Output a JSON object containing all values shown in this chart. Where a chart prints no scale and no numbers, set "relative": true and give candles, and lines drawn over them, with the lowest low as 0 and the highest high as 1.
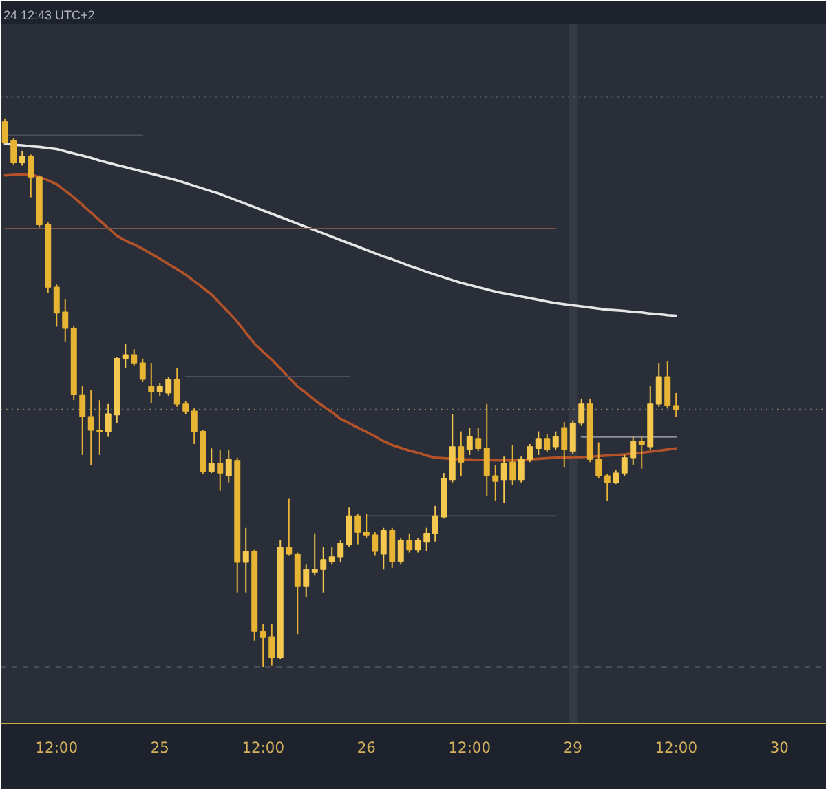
{
  "chart_data": {
    "type": "candlestick",
    "relative": true,
    "annotations": [
      "24 12:43 UTC+2"
    ],
    "categories": [
      null,
      null,
      null,
      null,
      null,
      null,
      "12:00",
      null,
      null,
      null,
      null,
      null,
      null,
      null,
      null,
      null,
      null,
      null,
      "25",
      null,
      null,
      null,
      null,
      null,
      null,
      null,
      null,
      null,
      null,
      null,
      "12:00",
      null,
      null,
      null,
      null,
      null,
      null,
      null,
      null,
      null,
      null,
      null,
      "26",
      null,
      null,
      null,
      null,
      null,
      null,
      null,
      null,
      null,
      null,
      null,
      "12:00",
      null,
      null,
      null,
      null,
      null,
      null,
      null,
      null,
      null,
      null,
      null,
      "29",
      null,
      null,
      null,
      null,
      null,
      null,
      null,
      null,
      null,
      null,
      null,
      "12:00",
      null,
      null,
      null,
      null,
      null,
      null,
      null,
      null,
      null,
      null,
      null,
      "30",
      null,
      null,
      null,
      null,
      null
    ],
    "ohlc": [
      [
        0.995,
        1.0,
        0.955,
        0.957
      ],
      [
        0.96,
        0.965,
        0.917,
        0.92
      ],
      [
        0.92,
        0.942,
        0.915,
        0.932
      ],
      [
        0.932,
        0.935,
        0.857,
        0.894
      ],
      [
        0.894,
        0.897,
        0.802,
        0.807
      ],
      [
        0.807,
        0.812,
        0.683,
        0.693
      ],
      [
        0.693,
        0.698,
        0.621,
        0.646
      ],
      [
        0.648,
        0.671,
        0.593,
        0.618
      ],
      [
        0.618,
        0.623,
        0.487,
        0.497
      ],
      [
        0.497,
        0.513,
        0.387,
        0.457
      ],
      [
        0.457,
        0.505,
        0.369,
        0.432
      ],
      [
        0.432,
        0.487,
        0.387,
        0.43
      ],
      [
        0.43,
        0.48,
        0.42,
        0.462
      ],
      [
        0.46,
        0.565,
        0.445,
        0.563
      ],
      [
        0.563,
        0.59,
        0.545,
        0.57
      ],
      [
        0.57,
        0.58,
        0.55,
        0.555
      ],
      [
        0.555,
        0.563,
        0.52,
        0.525
      ],
      [
        0.513,
        0.555,
        0.482,
        0.503
      ],
      [
        0.503,
        0.518,
        0.495,
        0.513
      ],
      [
        0.5,
        0.53,
        0.495,
        0.525
      ],
      [
        0.525,
        0.545,
        0.475,
        0.48
      ],
      [
        0.48,
        0.485,
        0.462,
        0.467
      ],
      [
        0.467,
        0.472,
        0.407,
        0.43
      ],
      [
        0.43,
        0.432,
        0.352,
        0.357
      ],
      [
        0.357,
        0.399,
        0.354,
        0.372
      ],
      [
        0.372,
        0.397,
        0.322,
        0.354
      ],
      [
        0.349,
        0.397,
        0.337,
        0.379
      ],
      [
        0.377,
        0.382,
        0.136,
        0.191
      ],
      [
        0.191,
        0.254,
        0.136,
        0.211
      ],
      [
        0.211,
        0.214,
        0.048,
        0.065
      ],
      [
        0.065,
        0.078,
        0,
        0.055
      ],
      [
        0.055,
        0.078,
        0.003,
        0.018
      ],
      [
        0.018,
        0.231,
        0.015,
        0.219
      ],
      [
        0.219,
        0.307,
        0.204,
        0.206
      ],
      [
        0.206,
        0.209,
        0.06,
        0.148
      ],
      [
        0.148,
        0.188,
        0.128,
        0.178
      ],
      [
        0.173,
        0.244,
        0.168,
        0.178
      ],
      [
        0.178,
        0.219,
        0.136,
        0.196
      ],
      [
        0.193,
        0.219,
        0.188,
        0.201
      ],
      [
        0.201,
        0.231,
        0.191,
        0.226
      ],
      [
        0.224,
        0.291,
        0.219,
        0.276
      ],
      [
        0.276,
        0.279,
        0.224,
        0.246
      ],
      [
        0.246,
        0.279,
        0.236,
        0.241
      ],
      [
        0.241,
        0.246,
        0.204,
        0.211
      ],
      [
        0.206,
        0.254,
        0.178,
        0.249
      ],
      [
        0.249,
        0.254,
        0.181,
        0.193
      ],
      [
        0.193,
        0.236,
        0.188,
        0.231
      ],
      [
        0.231,
        0.244,
        0.209,
        0.214
      ],
      [
        0.214,
        0.236,
        0.209,
        0.231
      ],
      [
        0.229,
        0.254,
        0.211,
        0.244
      ],
      [
        0.244,
        0.294,
        0.229,
        0.276
      ],
      [
        0.274,
        0.354,
        0.271,
        0.344
      ],
      [
        0.342,
        0.462,
        0.337,
        0.402
      ],
      [
        0.402,
        0.43,
        0.349,
        0.374
      ],
      [
        0.397,
        0.437,
        0.387,
        0.42
      ],
      [
        0.417,
        0.437,
        0.394,
        0.399
      ],
      [
        0.399,
        0.48,
        0.312,
        0.349
      ],
      [
        0.349,
        0.369,
        0.304,
        0.339
      ],
      [
        0.342,
        0.384,
        0.299,
        0.372
      ],
      [
        0.374,
        0.405,
        0.332,
        0.342
      ],
      [
        0.342,
        0.384,
        0.337,
        0.379
      ],
      [
        0.379,
        0.407,
        0.374,
        0.402
      ],
      [
        0.399,
        0.43,
        0.387,
        0.417
      ],
      [
        0.417,
        0.425,
        0.392,
        0.397
      ],
      [
        0.402,
        0.43,
        0.397,
        0.42
      ],
      [
        0.437,
        0.447,
        0.364,
        0.397
      ],
      [
        0.394,
        0.45,
        0.389,
        0.445
      ],
      [
        0.445,
        0.49,
        0.44,
        0.48
      ],
      [
        0.48,
        0.49,
        0.374,
        0.379
      ],
      [
        0.379,
        0.41,
        0.344,
        0.349
      ],
      [
        0.349,
        0.352,
        0.304,
        0.337
      ],
      [
        0.337,
        0.359,
        0.334,
        0.354
      ],
      [
        0.354,
        0.387,
        0.349,
        0.382
      ],
      [
        0.382,
        0.42,
        0.369,
        0.412
      ],
      [
        0.412,
        0.42,
        0.362,
        0.405
      ],
      [
        0.402,
        0.513,
        0.397,
        0.48
      ],
      [
        0.48,
        0.555,
        0.475,
        0.53
      ],
      [
        0.53,
        0.558,
        0.472,
        0.477
      ],
      [
        0.477,
        0.5,
        0.457,
        0.47
      ],
      null,
      null,
      null,
      null,
      null,
      null,
      null,
      null,
      null,
      null,
      null,
      null,
      null,
      null,
      null,
      null,
      null
    ],
    "colors": [
      "#e8b434",
      "#e8b434",
      "#f5c94f",
      "#e8b434",
      "#e8b434",
      "#e8b434",
      "#e8b434",
      "#e8b434",
      "#e8b434",
      "#e8b434",
      "#e8b434",
      "#e8b434",
      "#f5c94f",
      "#f5c94f",
      "#f5c94f",
      "#e8b434",
      "#e8b434",
      "#e8b434",
      "#f5c94f",
      "#f5c94f",
      "#e8b434",
      "#e8b434",
      "#e8b434",
      "#e8b434",
      "#f5c94f",
      "#e8b434",
      "#f5c94f",
      "#e8b434",
      "#f5c94f",
      "#e8b434",
      "#e8b434",
      "#e8b434",
      "#f5c94f",
      "#e8b434",
      "#e8b434",
      "#f5c94f",
      "#f5c94f",
      "#f5c94f",
      "#f5c94f",
      "#f5c94f",
      "#f5c94f",
      "#e8b434",
      "#e8b434",
      "#e8b434",
      "#f5c94f",
      "#e8b434",
      "#f5c94f",
      "#e8b434",
      "#f5c94f",
      "#f5c94f",
      "#f5c94f",
      "#f5c94f",
      "#f5c94f",
      "#e8b434",
      "#f5c94f",
      "#e8b434",
      "#e8b434",
      "#e8b434",
      "#f5c94f",
      "#e8b434",
      "#f5c94f",
      "#f5c94f",
      "#f5c94f",
      "#e8b434",
      "#f5c94f",
      "#e8b434",
      "#f5c94f",
      "#f5c94f",
      "#e8b434",
      "#e8b434",
      "#e8b434",
      "#f5c94f",
      "#f5c94f",
      "#f5c94f",
      "#e8b434",
      "#f5c94f",
      "#f5c94f",
      "#e8b434",
      "#e8b434",
      null,
      null,
      null,
      null,
      null,
      null,
      null,
      null,
      null,
      null,
      null,
      null,
      null,
      null,
      null,
      null,
      null
    ],
    "series": [
      {
        "type": "line",
        "color": "#e6e6e6",
        "values": [
          0.955,
          0.953,
          0.952,
          0.95,
          0.949,
          0.947,
          0.945,
          0.941,
          0.937,
          0.933,
          0.929,
          0.924,
          0.92,
          0.916,
          0.912,
          0.908,
          0.904,
          0.9,
          0.896,
          0.892,
          0.888,
          0.883,
          0.878,
          0.873,
          0.868,
          0.863,
          0.857,
          0.851,
          0.845,
          0.839,
          0.833,
          0.827,
          0.821,
          0.815,
          0.809,
          0.803,
          0.797,
          0.791,
          0.785,
          0.779,
          0.773,
          0.767,
          0.761,
          0.755,
          0.749,
          0.744,
          0.738,
          0.732,
          0.727,
          0.721,
          0.716,
          0.711,
          0.706,
          0.701,
          0.697,
          0.693,
          0.689,
          0.685,
          0.682,
          0.679,
          0.676,
          0.673,
          0.67,
          0.667,
          0.664,
          0.662,
          0.66,
          0.658,
          0.656,
          0.654,
          0.652,
          0.651,
          0.65,
          0.648,
          0.647,
          0.645,
          0.644,
          0.642,
          0.641,
          null,
          null,
          null,
          null,
          null,
          null,
          null,
          null,
          null,
          null,
          null,
          null,
          null,
          null,
          null,
          null,
          null
        ]
      },
      {
        "type": "line",
        "color": "#b4532a",
        "values": [
          0.897,
          0.898,
          0.899,
          0.899,
          0.894,
          0.888,
          0.881,
          0.869,
          0.857,
          0.843,
          0.829,
          0.815,
          0.801,
          0.787,
          0.778,
          0.771,
          0.763,
          0.754,
          0.745,
          0.735,
          0.726,
          0.716,
          0.704,
          0.692,
          0.68,
          0.663,
          0.647,
          0.63,
          0.61,
          0.59,
          0.575,
          0.561,
          0.545,
          0.528,
          0.512,
          0.5,
          0.487,
          0.476,
          0.465,
          0.453,
          0.445,
          0.437,
          0.429,
          0.421,
          0.412,
          0.405,
          0.4,
          0.395,
          0.391,
          0.386,
          0.382,
          0.381,
          0.38,
          0.379,
          0.379,
          0.378,
          0.378,
          0.377,
          0.377,
          0.377,
          0.378,
          0.379,
          0.38,
          0.381,
          0.382,
          0.382,
          0.383,
          0.383,
          0.384,
          0.385,
          0.386,
          0.387,
          0.388,
          0.39,
          0.391,
          0.393,
          0.395,
          0.397,
          0.399,
          null,
          null,
          null,
          null,
          null,
          null,
          null,
          null,
          null,
          null,
          null,
          null,
          null,
          null,
          null,
          null,
          null
        ]
      },
      {
        "type": "line",
        "color": "#4b505c",
        "values": [
          0.97,
          0.97,
          0.97,
          0.97,
          0.97,
          0.97,
          0.97,
          0.97,
          0.97,
          0.97,
          0.97,
          0.97,
          0.97,
          0.97,
          0.97,
          0.97,
          0.97,
          null,
          null,
          null,
          null,
          null,
          null,
          null,
          null,
          null,
          null,
          null,
          null,
          null,
          null,
          null,
          null,
          null,
          null,
          null,
          null,
          null,
          null,
          null,
          null,
          null,
          null,
          null,
          null,
          null,
          null,
          null,
          null,
          null,
          null,
          null,
          null,
          null,
          null,
          null,
          null,
          null,
          null,
          null,
          null,
          null,
          null,
          null,
          null,
          null,
          null,
          null,
          null,
          null,
          null,
          null,
          null,
          null,
          null,
          null,
          null,
          null,
          null,
          null,
          null,
          null,
          null,
          null,
          null,
          null,
          null,
          null,
          null,
          null,
          null,
          null,
          null,
          null,
          null,
          null
        ]
      },
      {
        "type": "line",
        "color": "#7b5347",
        "values": [
          0.8,
          0.8,
          0.8,
          0.8,
          0.8,
          0.8,
          0.8,
          0.8,
          0.8,
          0.8,
          0.8,
          0.8,
          0.8,
          0.8,
          0.8,
          0.8,
          0.8,
          0.8,
          0.8,
          0.8,
          0.8,
          0.8,
          0.8,
          0.8,
          0.8,
          0.8,
          0.8,
          0.8,
          0.8,
          0.8,
          0.8,
          0.8,
          0.8,
          0.8,
          0.8,
          0.8,
          0.8,
          0.8,
          0.8,
          0.8,
          0.8,
          0.8,
          0.8,
          0.8,
          0.8,
          0.8,
          0.8,
          0.8,
          0.8,
          0.8,
          0.8,
          0.8,
          0.8,
          0.8,
          0.8,
          0.8,
          0.8,
          0.8,
          0.8,
          0.8,
          0.8,
          0.8,
          0.8,
          0.8,
          0.8,
          null,
          null,
          null,
          null,
          null,
          null,
          null,
          null,
          null,
          null,
          null,
          null,
          null,
          null,
          null,
          null,
          null,
          null,
          null,
          null,
          null,
          null,
          null,
          null,
          null,
          null,
          null,
          null,
          null,
          null,
          null
        ]
      },
      {
        "type": "line",
        "color": "#4b505c",
        "values": [
          null,
          null,
          null,
          null,
          null,
          null,
          null,
          null,
          null,
          null,
          null,
          null,
          null,
          null,
          null,
          null,
          null,
          null,
          null,
          null,
          null,
          0.53,
          0.53,
          0.53,
          0.53,
          0.53,
          0.53,
          0.53,
          0.53,
          0.53,
          0.53,
          0.53,
          0.53,
          0.53,
          0.53,
          0.53,
          0.53,
          0.53,
          0.53,
          0.53,
          0.53,
          null,
          null,
          null,
          null,
          null,
          null,
          null,
          null,
          null,
          null,
          null,
          null,
          null,
          null,
          null,
          null,
          null,
          null,
          null,
          null,
          null,
          null,
          null,
          null,
          null,
          null,
          null,
          null,
          null,
          null,
          null,
          null,
          null,
          null,
          null,
          null,
          null,
          null,
          null,
          null,
          null,
          null,
          null,
          null,
          null,
          null,
          null,
          null,
          null,
          null,
          null,
          null,
          null,
          null,
          null
        ]
      },
      {
        "type": "line",
        "color": "#4b505c",
        "values": [
          null,
          null,
          null,
          null,
          null,
          null,
          null,
          null,
          null,
          null,
          null,
          null,
          null,
          null,
          null,
          null,
          null,
          null,
          null,
          null,
          null,
          null,
          null,
          null,
          null,
          null,
          null,
          null,
          null,
          null,
          null,
          null,
          null,
          null,
          null,
          null,
          null,
          null,
          null,
          null,
          null,
          null,
          0.276,
          0.276,
          0.276,
          0.276,
          0.276,
          0.276,
          0.276,
          0.276,
          0.276,
          0.276,
          0.276,
          0.276,
          0.276,
          0.276,
          0.276,
          0.276,
          0.276,
          0.276,
          0.276,
          0.276,
          0.276,
          0.276,
          0.276,
          null,
          null,
          null,
          null,
          null,
          null,
          null,
          null,
          null,
          null,
          null,
          null,
          null,
          null,
          null,
          null,
          null,
          null,
          null,
          null,
          null,
          null,
          null,
          null,
          null,
          null,
          null,
          null,
          null,
          null,
          null
        ]
      },
      {
        "type": "line",
        "color": "#8d8f95",
        "values": [
          null,
          null,
          null,
          null,
          null,
          null,
          null,
          null,
          null,
          null,
          null,
          null,
          null,
          null,
          null,
          null,
          null,
          null,
          null,
          null,
          null,
          null,
          null,
          null,
          null,
          null,
          null,
          null,
          null,
          null,
          null,
          null,
          null,
          null,
          null,
          null,
          null,
          null,
          null,
          null,
          null,
          null,
          null,
          null,
          null,
          null,
          null,
          null,
          null,
          null,
          null,
          null,
          null,
          null,
          null,
          null,
          null,
          null,
          null,
          null,
          null,
          null,
          null,
          null,
          null,
          null,
          null,
          0.42,
          0.42,
          0.42,
          0.42,
          0.42,
          0.42,
          0.42,
          0.42,
          0.42,
          0.42,
          0.42,
          0.42,
          null,
          null,
          null,
          null,
          null,
          null,
          null,
          null,
          null,
          null,
          null,
          null,
          null,
          null,
          null,
          null,
          null
        ]
      }
    ],
    "ref_lines": [
      {
        "axis": "y",
        "value": 1.04,
        "color": "#474c58",
        "line_style": "dotted"
      },
      {
        "axis": "y",
        "value": 0.47,
        "color": "#7d786a",
        "line_style": "dotted"
      },
      {
        "axis": "y",
        "value": 0,
        "color": "#474c58",
        "line_style": "dashed"
      }
    ],
    "bands": [
      {
        "axis": "x",
        "from": "29",
        "to": "29",
        "color": "#363a45"
      }
    ]
  }
}
